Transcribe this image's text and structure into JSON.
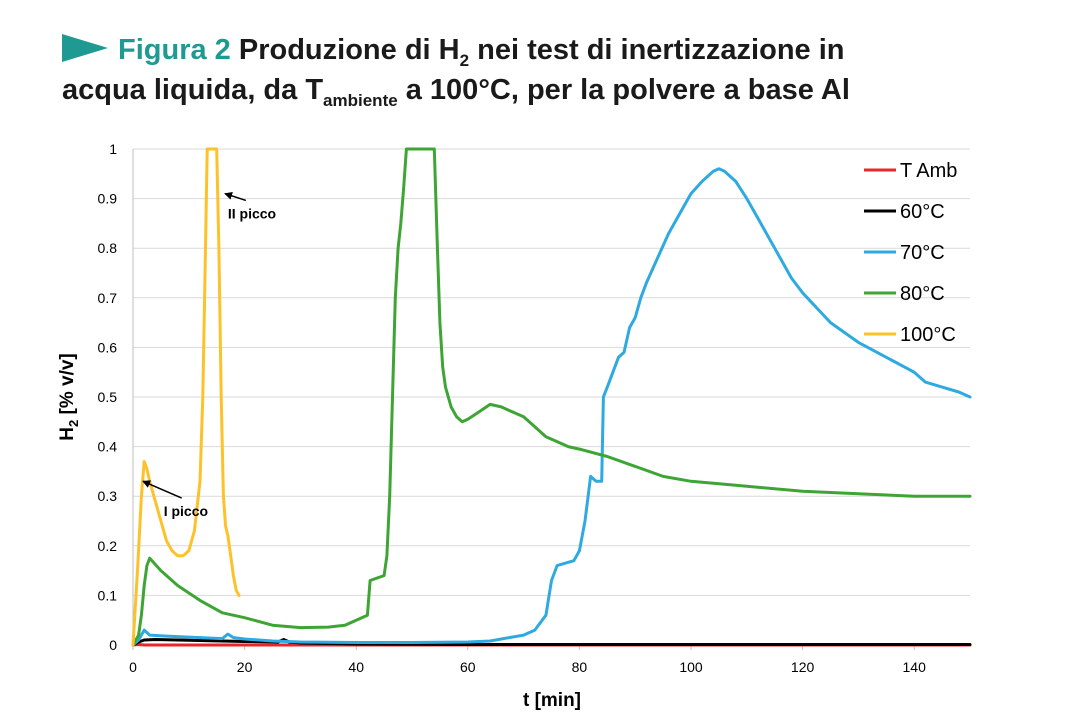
{
  "header": {
    "figure_label": "Figura 2",
    "title_part1": "Produzione di H",
    "title_sub1": "2",
    "title_part2": " nei test di inertizzazione in",
    "title_line2_part1": "acqua liquida, da T",
    "title_sub2": "ambiente",
    "title_line2_part2": " a 100°C, per la polvere a base Al",
    "accent_color": "#1f9a92"
  },
  "chart_data": {
    "type": "line",
    "xlabel": "t [min]",
    "ylabel_main": "H",
    "ylabel_sub": "2",
    "ylabel_rest": " [% v/v]",
    "xlim": [
      0,
      150
    ],
    "ylim": [
      0,
      1
    ],
    "xticks": [
      0,
      20,
      40,
      60,
      80,
      100,
      120,
      140
    ],
    "yticks": [
      0,
      0.1,
      0.2,
      0.3,
      0.4,
      0.5,
      0.6,
      0.7,
      0.8,
      0.9,
      1
    ],
    "grid": "horizontal",
    "legend_position": "top-right",
    "annotations": [
      {
        "text": "II picco",
        "x": 17,
        "y": 0.86,
        "arrow_to": [
          16.5,
          0.91
        ]
      },
      {
        "text": "I picco",
        "x": 5.5,
        "y": 0.26,
        "arrow_to": [
          1.8,
          0.33
        ]
      }
    ],
    "series": [
      {
        "name": "T Amb",
        "color": "#e8262b",
        "x": [
          0,
          1,
          2,
          150
        ],
        "y": [
          0,
          0.001,
          0,
          0
        ]
      },
      {
        "name": "60°C",
        "color": "#000000",
        "x": [
          0,
          1,
          2,
          4,
          8,
          12,
          16,
          20,
          26,
          27,
          28,
          30,
          40,
          60,
          90,
          120,
          150
        ],
        "y": [
          0,
          0.006,
          0.01,
          0.011,
          0.01,
          0.009,
          0.008,
          0.007,
          0.006,
          0.011,
          0.006,
          0.004,
          0.002,
          0.001,
          0.001,
          0.001,
          0.001
        ]
      },
      {
        "name": "70°C",
        "color": "#2eaae0",
        "x": [
          0,
          1,
          2,
          3,
          6,
          10,
          14,
          16,
          17,
          18,
          20,
          25,
          30,
          40,
          50,
          60,
          64,
          66,
          70,
          72,
          74,
          75,
          76,
          79,
          80,
          81,
          82,
          83,
          84,
          84.3,
          85,
          86,
          87,
          88,
          89,
          90,
          91,
          92,
          94,
          96,
          98,
          100,
          102,
          104,
          105,
          106,
          108,
          110,
          112,
          115,
          118,
          120,
          125,
          130,
          135,
          140,
          142,
          145,
          148,
          150
        ],
        "y": [
          0,
          0.01,
          0.03,
          0.02,
          0.018,
          0.016,
          0.014,
          0.013,
          0.022,
          0.015,
          0.012,
          0.008,
          0.006,
          0.005,
          0.005,
          0.006,
          0.008,
          0.012,
          0.02,
          0.03,
          0.06,
          0.13,
          0.16,
          0.17,
          0.19,
          0.25,
          0.34,
          0.33,
          0.33,
          0.5,
          0.52,
          0.55,
          0.58,
          0.59,
          0.64,
          0.66,
          0.7,
          0.73,
          0.78,
          0.83,
          0.87,
          0.91,
          0.935,
          0.955,
          0.96,
          0.955,
          0.935,
          0.9,
          0.86,
          0.8,
          0.74,
          0.71,
          0.65,
          0.61,
          0.58,
          0.55,
          0.53,
          0.52,
          0.51,
          0.5
        ]
      },
      {
        "name": "80°C",
        "color": "#3ea535",
        "x": [
          0,
          1,
          1.5,
          2,
          2.5,
          3,
          5,
          8,
          12,
          16,
          20,
          25,
          30,
          35,
          38,
          40,
          42,
          42.5,
          45,
          45.5,
          46,
          46.5,
          47,
          47.5,
          48,
          48.5,
          49,
          50,
          53,
          54,
          54.5,
          55,
          55.5,
          56,
          57,
          58,
          59,
          60,
          62,
          64,
          66,
          68,
          70,
          72,
          74,
          76,
          78,
          80,
          85,
          90,
          95,
          100,
          110,
          120,
          130,
          140,
          150
        ],
        "y": [
          0,
          0.02,
          0.06,
          0.12,
          0.16,
          0.175,
          0.15,
          0.12,
          0.09,
          0.065,
          0.055,
          0.04,
          0.035,
          0.036,
          0.04,
          0.05,
          0.06,
          0.13,
          0.14,
          0.18,
          0.3,
          0.5,
          0.7,
          0.8,
          0.85,
          0.92,
          1,
          1,
          1,
          1,
          0.82,
          0.65,
          0.56,
          0.52,
          0.48,
          0.46,
          0.45,
          0.455,
          0.47,
          0.485,
          0.48,
          0.47,
          0.46,
          0.44,
          0.42,
          0.41,
          0.4,
          0.395,
          0.38,
          0.36,
          0.34,
          0.33,
          0.32,
          0.31,
          0.305,
          0.3,
          0.3
        ]
      },
      {
        "name": "100°C",
        "color": "#fdc12a",
        "x": [
          0,
          0.8,
          1.5,
          2,
          2.5,
          3,
          4,
          5,
          6,
          7,
          8,
          9,
          10,
          11,
          12,
          12.5,
          13,
          13.3,
          14,
          15,
          15.4,
          15.8,
          16.2,
          16.6,
          17,
          17.5,
          18,
          18.5,
          19
        ],
        "y": [
          0,
          0.15,
          0.3,
          0.37,
          0.355,
          0.33,
          0.29,
          0.25,
          0.21,
          0.19,
          0.18,
          0.18,
          0.19,
          0.23,
          0.33,
          0.5,
          0.8,
          1,
          1,
          1,
          0.8,
          0.5,
          0.3,
          0.24,
          0.22,
          0.18,
          0.14,
          0.11,
          0.1
        ]
      }
    ]
  }
}
